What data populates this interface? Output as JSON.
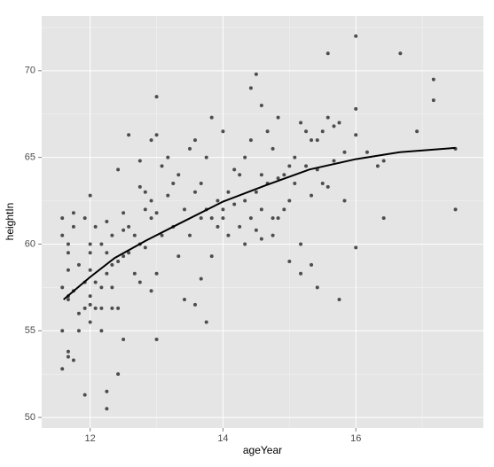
{
  "chart_data": {
    "type": "scatter",
    "xlabel": "ageYear",
    "ylabel": "heightIn",
    "xlim": [
      11.27,
      17.92
    ],
    "ylim": [
      49.39,
      73.16
    ],
    "xticks": [
      12,
      14,
      16
    ],
    "yticks": [
      50,
      55,
      60,
      65,
      70
    ],
    "minor_xticks": [
      13,
      15,
      17
    ],
    "minor_yticks": [
      52.5,
      57.5,
      62.5,
      67.5,
      72.5
    ],
    "grid": true,
    "panel_color": "#e5e5e5",
    "grid_color": "#ffffff",
    "point_color": "#4d4d4d",
    "line_color": "#000000",
    "x": [
      11.58,
      11.58,
      11.58,
      11.58,
      11.58,
      11.67,
      11.67,
      11.67,
      11.67,
      11.67,
      11.67,
      11.67,
      11.75,
      11.75,
      11.75,
      11.75,
      11.83,
      11.83,
      11.83,
      11.92,
      11.92,
      11.92,
      11.92,
      12,
      12,
      12,
      12,
      12,
      12,
      12,
      12.08,
      12.08,
      12.08,
      12.17,
      12.17,
      12.17,
      12.17,
      12.25,
      12.25,
      12.25,
      12.25,
      12.25,
      12.33,
      12.33,
      12.33,
      12.33,
      12.42,
      12.42,
      12.42,
      12.42,
      12.5,
      12.5,
      12.5,
      12.5,
      12.58,
      12.58,
      12.58,
      12.67,
      12.67,
      12.75,
      12.75,
      12.75,
      12.75,
      12.83,
      12.83,
      12.83,
      12.92,
      12.92,
      12.92,
      12.92,
      13,
      13,
      13,
      13,
      13,
      13.08,
      13.08,
      13.17,
      13.17,
      13.25,
      13.25,
      13.33,
      13.33,
      13.42,
      13.42,
      13.5,
      13.5,
      13.58,
      13.58,
      13.58,
      13.67,
      13.67,
      13.67,
      13.75,
      13.75,
      13.75,
      13.83,
      13.83,
      13.83,
      13.92,
      13.92,
      14,
      14,
      14,
      14.08,
      14.08,
      14.17,
      14.17,
      14.25,
      14.25,
      14.33,
      14.33,
      14.33,
      14.42,
      14.42,
      14.42,
      14.5,
      14.5,
      14.5,
      14.58,
      14.58,
      14.58,
      14.58,
      14.67,
      14.67,
      14.75,
      14.75,
      14.75,
      14.83,
      14.83,
      14.83,
      14.92,
      14.92,
      15,
      15,
      15,
      15.08,
      15.08,
      15.17,
      15.17,
      15.17,
      15.25,
      15.25,
      15.33,
      15.33,
      15.33,
      15.42,
      15.42,
      15.42,
      15.5,
      15.5,
      15.58,
      15.58,
      15.58,
      15.67,
      15.67,
      15.75,
      15.75,
      15.83,
      15.83,
      16,
      16,
      16,
      16,
      16.17,
      16.33,
      16.42,
      16.42,
      16.67,
      16.92,
      17.17,
      17.17,
      17.5,
      17.5
    ],
    "y": [
      61.5,
      60.5,
      57.5,
      55,
      52.8,
      59.5,
      60,
      56.8,
      57,
      53.8,
      53.5,
      58.5,
      61.8,
      61,
      57.3,
      53.3,
      56,
      58.8,
      55,
      61.5,
      57.8,
      51.3,
      56.3,
      62.8,
      60,
      59.5,
      58.5,
      57,
      56.5,
      55.5,
      61,
      57.8,
      56.3,
      60,
      57.5,
      56.3,
      55,
      61.3,
      59.5,
      58.3,
      51.5,
      50.5,
      60.5,
      58.8,
      57.5,
      56.3,
      64.3,
      59,
      52.5,
      56.3,
      61.8,
      60.8,
      59.3,
      54.5,
      66.3,
      61,
      59.5,
      60.5,
      58.3,
      64.8,
      63.3,
      60,
      57.8,
      63,
      62,
      59.8,
      66,
      62.5,
      61.5,
      57.3,
      68.5,
      66.3,
      61.8,
      58.3,
      54.5,
      64.5,
      60.5,
      65,
      62.8,
      63.5,
      61,
      64,
      59.3,
      62,
      56.8,
      65.5,
      60.5,
      66,
      63,
      56.5,
      63.5,
      61.5,
      58,
      65,
      62,
      55.5,
      67.3,
      61.5,
      59.3,
      62.5,
      61,
      66.5,
      62,
      61.5,
      63,
      60.5,
      64.3,
      62.3,
      64,
      61,
      65,
      62.5,
      60,
      66,
      69,
      61.5,
      69.8,
      63,
      60.8,
      68,
      64,
      62,
      60.3,
      66.5,
      63.5,
      65.5,
      61.5,
      60.5,
      67.3,
      63.8,
      61.5,
      64,
      62,
      64.5,
      59,
      62.5,
      65,
      63.5,
      67,
      60,
      58.3,
      66.5,
      64.5,
      66,
      62.8,
      58.8,
      66,
      64.3,
      57.5,
      66.5,
      63.5,
      71,
      67.3,
      63.3,
      66.8,
      64.8,
      67,
      56.8,
      65.3,
      62.5,
      72,
      67.8,
      66.3,
      59.8,
      65.3,
      64.5,
      61.5,
      64.8,
      71,
      66.5,
      69.5,
      68.3,
      65.5,
      62
    ],
    "smooth": {
      "x": [
        11.6,
        12,
        12.37,
        12.84,
        13.3,
        14,
        14.65,
        15.3,
        16,
        16.66,
        17.5
      ],
      "y": [
        56.8,
        58.1,
        59.2,
        60.2,
        61.1,
        62.45,
        63.4,
        64.3,
        64.9,
        65.3,
        65.55
      ]
    }
  }
}
